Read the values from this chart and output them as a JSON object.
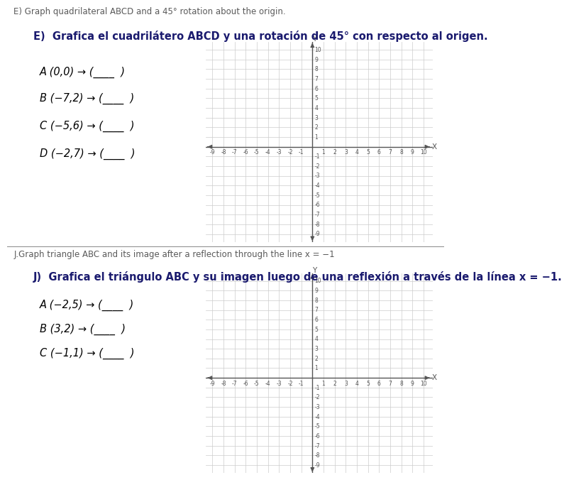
{
  "top_label_E": "E) Graph quadrilateral ABCD and a 45° rotation about the origin.",
  "section_E_title": "E)  Grafica el cuadrilátero ABCD y una rotación de 45° con respecto al origen.",
  "section_E_points": [
    {
      "label": "A",
      "point": "(0,0)"
    },
    {
      "label": "B",
      "point": "(−7,2)"
    },
    {
      "label": "C",
      "point": "(−5,6)"
    },
    {
      "label": "D",
      "point": "(−2,7)"
    }
  ],
  "grid_E": {
    "xmin": -9,
    "xmax": 10,
    "ymin": -9,
    "ymax": 10
  },
  "top_label_J": "J.Graph triangle ABC and its image after a reflection through the line x = −1",
  "section_J_title": "J)  Grafica el triángulo ABC y su imagen luego de una reflexión a través de la línea x = −1.",
  "section_J_points": [
    {
      "label": "A",
      "point": "(−2,5)"
    },
    {
      "label": "B",
      "point": "(3,2)"
    },
    {
      "label": "C",
      "point": "(−1,1)"
    }
  ],
  "grid_J": {
    "xmin": -9,
    "xmax": 10,
    "ymin": -9,
    "ymax": 10
  },
  "top_text_color": "#5a5a5a",
  "title_color": "#1a1a6e",
  "point_color": "#000000",
  "grid_color": "#cccccc",
  "axis_color": "#555555",
  "tick_color": "#555555",
  "bg_color": "#ffffff",
  "font_size_top": 8.5,
  "font_size_title": 10.5,
  "font_size_points": 10.5,
  "font_size_tick": 5.5
}
